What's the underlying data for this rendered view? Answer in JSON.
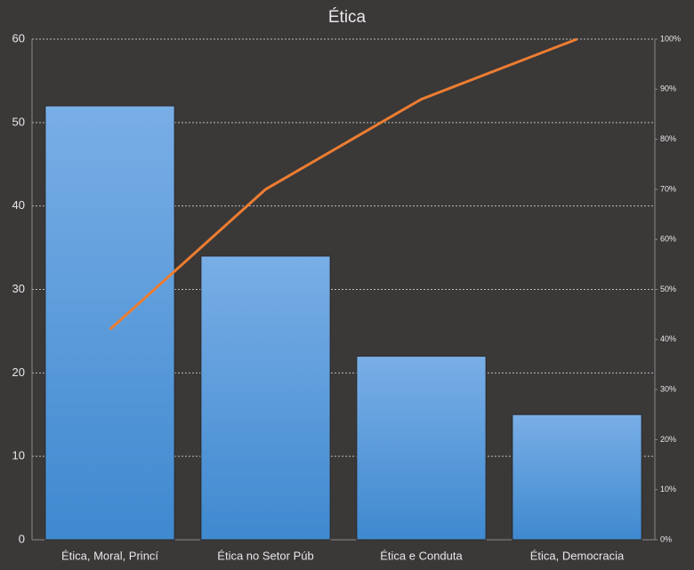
{
  "chart_data": {
    "type": "pareto",
    "title": "Ética",
    "categories": [
      "Ética, Moral, Princí",
      "Ética no Setor Púb",
      "Ética e Conduta",
      "Ética, Democracia"
    ],
    "series": [
      {
        "type": "bar",
        "color": "#4a8fd6",
        "values": [
          52,
          34,
          22,
          15
        ]
      },
      {
        "type": "line",
        "axis": "y2",
        "color": "#ed7d31",
        "values": [
          42,
          70,
          88,
          100
        ]
      }
    ],
    "ylim": [
      0,
      60
    ],
    "yticks": [
      0,
      10,
      20,
      30,
      40,
      50,
      60
    ],
    "y2lim": [
      0,
      100
    ],
    "y2ticks": [
      {
        "value": 0,
        "label": "0%"
      },
      {
        "value": 10,
        "label": "10%"
      },
      {
        "value": 20,
        "label": "20%"
      },
      {
        "value": 30,
        "label": "30%"
      },
      {
        "value": 40,
        "label": "40%"
      },
      {
        "value": 50,
        "label": "50%"
      },
      {
        "value": 60,
        "label": "60%"
      },
      {
        "value": 70,
        "label": "70%"
      },
      {
        "value": 80,
        "label": "80%"
      },
      {
        "value": 90,
        "label": "90%"
      },
      {
        "value": 100,
        "label": "100%"
      }
    ],
    "grid": true
  }
}
